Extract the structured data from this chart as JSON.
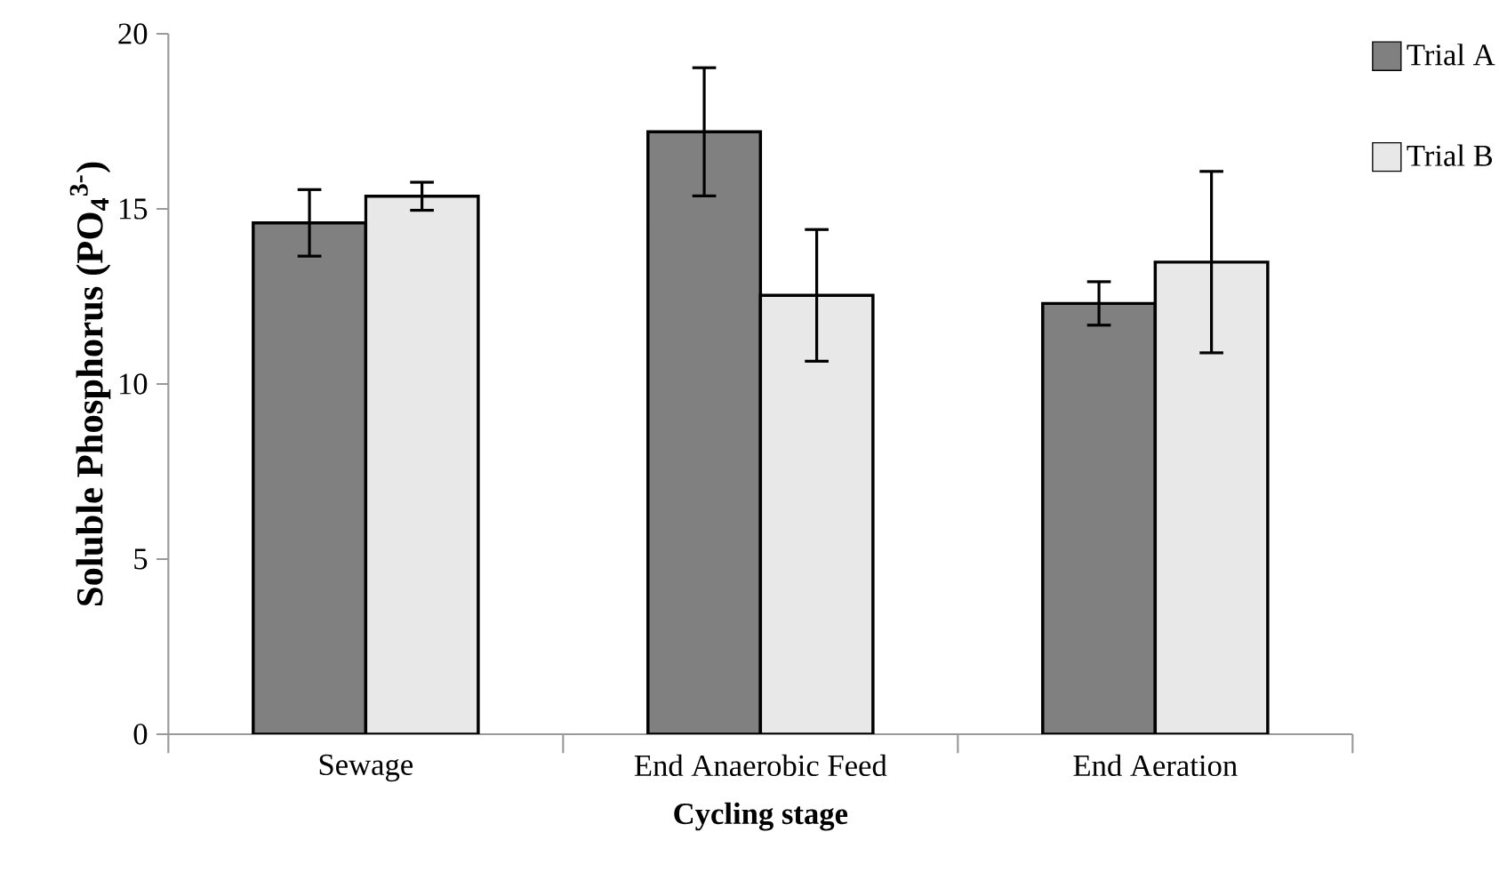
{
  "chart_data": {
    "type": "bar",
    "xlabel": "Cycling stage",
    "ylabel": "**Soluble Phosphorus (PO$_{4}$$^{3-}$)**",
    "categories": [
      "Sewage",
      "End Anaerobic Feed",
      "End Aeration"
    ],
    "series": [
      {
        "name": "Trial A",
        "color": "#808080",
        "values": [
          14.6,
          17.2,
          12.3
        ],
        "errors": [
          0.95,
          1.83,
          0.62
        ]
      },
      {
        "name": "Trial B",
        "color": "#e8e8e8",
        "values": [
          15.36,
          12.53,
          13.48
        ],
        "errors": [
          0.4,
          1.88,
          2.59
        ]
      }
    ],
    "ylim": [
      0,
      20
    ],
    "yticks": [
      0,
      5,
      10,
      15,
      20
    ],
    "grid": false,
    "legend": "top right"
  }
}
